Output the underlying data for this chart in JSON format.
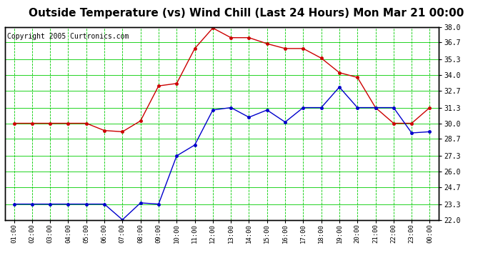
{
  "title": "Outside Temperature (vs) Wind Chill (Last 24 Hours) Mon Mar 21 00:00",
  "copyright": "Copyright 2005 Curtronics.com",
  "x_labels": [
    "01:00",
    "02:00",
    "03:00",
    "04:00",
    "05:00",
    "06:00",
    "07:00",
    "08:00",
    "09:00",
    "10:00",
    "11:00",
    "12:00",
    "13:00",
    "14:00",
    "15:00",
    "16:00",
    "17:00",
    "18:00",
    "19:00",
    "20:00",
    "21:00",
    "22:00",
    "23:00",
    "00:00"
  ],
  "y_ticks": [
    22.0,
    23.3,
    24.7,
    26.0,
    27.3,
    28.7,
    30.0,
    31.3,
    32.7,
    34.0,
    35.3,
    36.7,
    38.0
  ],
  "ylim": [
    22.0,
    38.0
  ],
  "red_data": [
    30.0,
    30.0,
    30.0,
    30.0,
    30.0,
    29.4,
    29.3,
    30.2,
    33.1,
    33.3,
    36.2,
    37.9,
    37.1,
    37.1,
    36.6,
    36.2,
    36.2,
    35.4,
    34.2,
    33.8,
    31.3,
    30.0,
    30.0,
    31.3
  ],
  "blue_data": [
    23.3,
    23.3,
    23.3,
    23.3,
    23.3,
    23.3,
    22.0,
    23.4,
    23.3,
    27.3,
    28.2,
    31.1,
    31.3,
    30.5,
    31.1,
    30.1,
    31.3,
    31.3,
    33.0,
    31.3,
    31.3,
    31.3,
    29.2,
    29.3
  ],
  "bg_color": "#ffffff",
  "plot_bg_color": "#ffffff",
  "grid_color": "#00cc00",
  "red_line_color": "#cc0000",
  "blue_line_color": "#0000cc",
  "title_fontsize": 11,
  "copyright_fontsize": 7
}
